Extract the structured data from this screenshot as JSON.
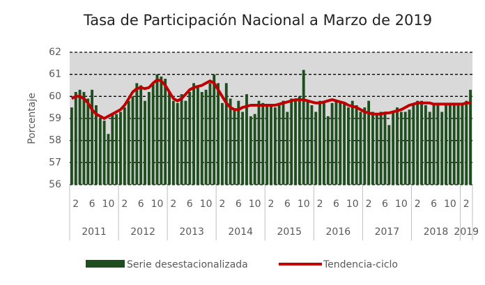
{
  "chart_data": {
    "type": "bar_line",
    "title": "Tasa de Participación Nacional a Marzo de 2019",
    "y_label": "Porcentaje",
    "categories": [
      null,
      "2",
      null,
      null,
      null,
      "6",
      null,
      null,
      null,
      "10",
      null,
      null,
      null,
      "2",
      null,
      null,
      null,
      "6",
      null,
      null,
      null,
      "10",
      null,
      null,
      null,
      "2",
      null,
      null,
      null,
      "6",
      null,
      null,
      null,
      "10",
      null,
      null,
      null,
      "2",
      null,
      null,
      null,
      "6",
      null,
      null,
      null,
      "10",
      null,
      null,
      null,
      "2",
      null,
      null,
      null,
      "6",
      null,
      null,
      null,
      "10",
      null,
      null,
      null,
      "2",
      null,
      null,
      null,
      "6",
      null,
      null,
      null,
      "10",
      null,
      null,
      null,
      "2",
      null,
      null,
      null,
      "6",
      null,
      null,
      null,
      "10",
      null,
      null,
      null,
      "2",
      null,
      null,
      null,
      "6",
      null,
      null,
      null,
      "10",
      null,
      null,
      null,
      "2",
      null
    ],
    "years": [
      "2011",
      "2012",
      "2013",
      "2014",
      "2015",
      "2016",
      "2017",
      "2018",
      "2019"
    ],
    "ylim": [
      56,
      62
    ],
    "yticks": [
      56,
      57,
      58,
      59,
      60,
      61,
      62
    ],
    "grid": true,
    "series": [
      {
        "name": "Serie desestacionalizada",
        "type": "bar",
        "color": "#1e4d1e",
        "values": [
          59.5,
          60.2,
          60.3,
          60.2,
          59.9,
          60.3,
          59.6,
          59.0,
          58.9,
          58.3,
          59.2,
          59.2,
          59.3,
          59.5,
          59.8,
          60.0,
          60.6,
          60.5,
          59.8,
          60.2,
          60.6,
          61.0,
          60.9,
          60.8,
          60.2,
          59.8,
          59.7,
          60.1,
          59.8,
          60.2,
          60.6,
          60.4,
          60.2,
          60.3,
          60.6,
          61.0,
          60.6,
          59.7,
          60.6,
          59.9,
          59.4,
          59.8,
          59.3,
          60.1,
          59.1,
          59.2,
          59.8,
          59.7,
          59.6,
          59.6,
          59.5,
          59.6,
          59.8,
          59.3,
          59.9,
          59.9,
          60.0,
          61.2,
          59.8,
          59.6,
          59.3,
          59.8,
          59.7,
          59.1,
          59.7,
          59.8,
          59.8,
          59.7,
          59.5,
          59.8,
          59.6,
          59.3,
          59.5,
          59.8,
          59.3,
          59.2,
          59.3,
          59.3,
          58.7,
          59.3,
          59.5,
          59.3,
          59.3,
          59.4,
          59.6,
          59.8,
          59.8,
          59.6,
          59.3,
          59.7,
          59.6,
          59.3,
          59.6,
          59.6,
          59.7,
          59.6,
          59.6,
          59.8,
          60.3
        ]
      },
      {
        "name": "Tendencia-ciclo",
        "type": "line",
        "color": "#c00000",
        "values": [
          59.9,
          60.0,
          60.0,
          59.9,
          59.7,
          59.4,
          59.2,
          59.1,
          59.0,
          59.1,
          59.2,
          59.3,
          59.4,
          59.6,
          59.9,
          60.2,
          60.35,
          60.4,
          60.35,
          60.4,
          60.6,
          60.75,
          60.7,
          60.5,
          60.2,
          59.9,
          59.8,
          59.9,
          60.1,
          60.3,
          60.4,
          60.45,
          60.5,
          60.6,
          60.7,
          60.6,
          60.3,
          60.0,
          59.7,
          59.5,
          59.4,
          59.4,
          59.5,
          59.55,
          59.6,
          59.6,
          59.6,
          59.6,
          59.6,
          59.6,
          59.6,
          59.65,
          59.7,
          59.75,
          59.8,
          59.85,
          59.85,
          59.85,
          59.8,
          59.75,
          59.7,
          59.7,
          59.75,
          59.8,
          59.85,
          59.8,
          59.75,
          59.7,
          59.6,
          59.55,
          59.5,
          59.4,
          59.3,
          59.25,
          59.2,
          59.2,
          59.2,
          59.25,
          59.25,
          59.3,
          59.35,
          59.4,
          59.5,
          59.6,
          59.65,
          59.7,
          59.7,
          59.7,
          59.7,
          59.65,
          59.65,
          59.65,
          59.65,
          59.65,
          59.65,
          59.65,
          59.65,
          59.7,
          59.7
        ]
      }
    ]
  }
}
